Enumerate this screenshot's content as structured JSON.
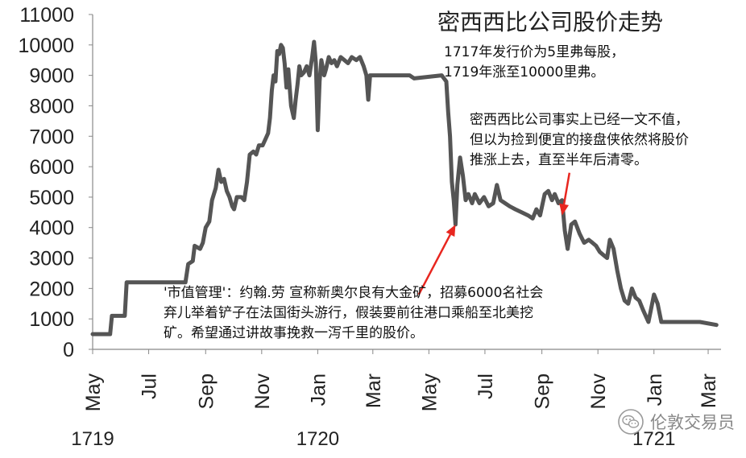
{
  "chart_data": {
    "type": "line",
    "title": "密西西比公司股价走势",
    "xlabel": "",
    "ylabel": "",
    "ylim": [
      0,
      11000
    ],
    "xlim": [
      "1719-05-01",
      "1721-03-15"
    ],
    "y_ticks": [
      "0",
      "1000",
      "2000",
      "3000",
      "4000",
      "5000",
      "6000",
      "7000",
      "8000",
      "9000",
      "10000",
      "11000"
    ],
    "x_ticks": [
      {
        "label": "May",
        "date": "1719-05-01"
      },
      {
        "label": "Jul",
        "date": "1719-07-01"
      },
      {
        "label": "Sep",
        "date": "1719-09-01"
      },
      {
        "label": "Nov",
        "date": "1719-11-01"
      },
      {
        "label": "Jan",
        "date": "1720-01-01"
      },
      {
        "label": "Mar",
        "date": "1720-03-01"
      },
      {
        "label": "May",
        "date": "1720-05-01"
      },
      {
        "label": "Jul",
        "date": "1720-07-01"
      },
      {
        "label": "Sep",
        "date": "1720-09-01"
      },
      {
        "label": "Nov",
        "date": "1720-11-01"
      },
      {
        "label": "Jan",
        "date": "1721-01-01"
      },
      {
        "label": "Mar",
        "date": "1721-03-01"
      }
    ],
    "year_labels": [
      {
        "label": "1719",
        "date": "1719-05-01"
      },
      {
        "label": "1720",
        "date": "1720-01-01"
      },
      {
        "label": "1721",
        "date": "1721-01-01"
      }
    ],
    "grid": false,
    "series_color": "#555555",
    "series": [
      {
        "name": "",
        "points": [
          [
            "1719-05-01",
            500
          ],
          [
            "1719-05-20",
            500
          ],
          [
            "1719-05-22",
            1100
          ],
          [
            "1719-06-05",
            1100
          ],
          [
            "1719-06-07",
            2200
          ],
          [
            "1719-08-10",
            2200
          ],
          [
            "1719-08-13",
            2800
          ],
          [
            "1719-08-18",
            2900
          ],
          [
            "1719-08-20",
            3400
          ],
          [
            "1719-08-26",
            3300
          ],
          [
            "1719-08-29",
            3500
          ],
          [
            "1719-09-01",
            4000
          ],
          [
            "1719-09-05",
            4200
          ],
          [
            "1719-09-08",
            4900
          ],
          [
            "1719-09-12",
            5300
          ],
          [
            "1719-09-15",
            5900
          ],
          [
            "1719-09-18",
            5500
          ],
          [
            "1719-09-21",
            5600
          ],
          [
            "1719-09-24",
            5200
          ],
          [
            "1719-09-27",
            5000
          ],
          [
            "1719-09-30",
            4700
          ],
          [
            "1719-10-02",
            4600
          ],
          [
            "1719-10-05",
            5000
          ],
          [
            "1719-10-10",
            5000
          ],
          [
            "1719-10-13",
            4900
          ],
          [
            "1719-10-16",
            5500
          ],
          [
            "1719-10-19",
            6400
          ],
          [
            "1719-10-23",
            6500
          ],
          [
            "1719-10-26",
            6400
          ],
          [
            "1719-10-29",
            6700
          ],
          [
            "1719-11-02",
            6700
          ],
          [
            "1719-11-05",
            6900
          ],
          [
            "1719-11-08",
            7100
          ],
          [
            "1719-11-10",
            7600
          ],
          [
            "1719-11-12",
            8500
          ],
          [
            "1719-11-14",
            9000
          ],
          [
            "1719-11-16",
            8800
          ],
          [
            "1719-11-18",
            9800
          ],
          [
            "1719-11-20",
            9700
          ],
          [
            "1719-11-22",
            10000
          ],
          [
            "1719-11-24",
            9900
          ],
          [
            "1719-11-26",
            9400
          ],
          [
            "1719-11-28",
            8600
          ],
          [
            "1719-11-30",
            9200
          ],
          [
            "1719-12-03",
            8000
          ],
          [
            "1719-12-06",
            7600
          ],
          [
            "1719-12-08",
            8200
          ],
          [
            "1719-12-10",
            8700
          ],
          [
            "1719-12-12",
            9300
          ],
          [
            "1719-12-14",
            9000
          ],
          [
            "1719-12-17",
            9100
          ],
          [
            "1719-12-20",
            9300
          ],
          [
            "1719-12-23",
            9000
          ],
          [
            "1719-12-26",
            9600
          ],
          [
            "1719-12-28",
            10100
          ],
          [
            "1719-12-30",
            9400
          ],
          [
            "1720-01-01",
            7200
          ],
          [
            "1720-01-03",
            8800
          ],
          [
            "1720-01-05",
            9500
          ],
          [
            "1720-01-08",
            9000
          ],
          [
            "1720-01-10",
            9200
          ],
          [
            "1720-01-13",
            9600
          ],
          [
            "1720-01-16",
            9400
          ],
          [
            "1720-01-19",
            9500
          ],
          [
            "1720-01-22",
            9300
          ],
          [
            "1720-01-26",
            9600
          ],
          [
            "1720-01-30",
            9500
          ],
          [
            "1720-02-03",
            9400
          ],
          [
            "1720-02-07",
            9600
          ],
          [
            "1720-02-12",
            9500
          ],
          [
            "1720-02-16",
            9600
          ],
          [
            "1720-02-20",
            9300
          ],
          [
            "1720-02-23",
            9000
          ],
          [
            "1720-02-25",
            8200
          ],
          [
            "1720-02-27",
            9000
          ],
          [
            "1720-03-10",
            9000
          ],
          [
            "1720-04-10",
            9000
          ],
          [
            "1720-04-15",
            8900
          ],
          [
            "1720-05-15",
            9000
          ],
          [
            "1720-05-20",
            8800
          ],
          [
            "1720-05-22",
            7800
          ],
          [
            "1720-05-24",
            7000
          ],
          [
            "1720-05-26",
            5500
          ],
          [
            "1720-05-28",
            4900
          ],
          [
            "1720-05-30",
            4100
          ],
          [
            "1720-06-01",
            5400
          ],
          [
            "1720-06-04",
            6300
          ],
          [
            "1720-06-07",
            5700
          ],
          [
            "1720-06-10",
            4900
          ],
          [
            "1720-06-13",
            5100
          ],
          [
            "1720-06-17",
            4800
          ],
          [
            "1720-06-20",
            5100
          ],
          [
            "1720-06-25",
            4800
          ],
          [
            "1720-06-30",
            5000
          ],
          [
            "1720-07-05",
            4700
          ],
          [
            "1720-07-10",
            4800
          ],
          [
            "1720-07-14",
            5400
          ],
          [
            "1720-07-18",
            4900
          ],
          [
            "1720-07-23",
            4800
          ],
          [
            "1720-07-28",
            4700
          ],
          [
            "1720-08-03",
            4600
          ],
          [
            "1720-08-10",
            4500
          ],
          [
            "1720-08-17",
            4400
          ],
          [
            "1720-08-22",
            4300
          ],
          [
            "1720-08-26",
            4600
          ],
          [
            "1720-08-30",
            4400
          ],
          [
            "1720-09-04",
            5100
          ],
          [
            "1720-09-08",
            5200
          ],
          [
            "1720-09-12",
            4900
          ],
          [
            "1720-09-15",
            5100
          ],
          [
            "1720-09-19",
            4800
          ],
          [
            "1720-09-23",
            4900
          ],
          [
            "1720-09-26",
            3900
          ],
          [
            "1720-09-29",
            3300
          ],
          [
            "1720-10-03",
            4100
          ],
          [
            "1720-10-07",
            4200
          ],
          [
            "1720-10-12",
            3800
          ],
          [
            "1720-10-17",
            3500
          ],
          [
            "1720-10-22",
            3600
          ],
          [
            "1720-10-26",
            3500
          ],
          [
            "1720-10-30",
            3400
          ],
          [
            "1720-11-03",
            3200
          ],
          [
            "1720-11-07",
            3100
          ],
          [
            "1720-11-11",
            3000
          ],
          [
            "1720-11-14",
            3600
          ],
          [
            "1720-11-18",
            3300
          ],
          [
            "1720-11-22",
            2600
          ],
          [
            "1720-11-26",
            2000
          ],
          [
            "1720-11-30",
            1600
          ],
          [
            "1720-12-04",
            1500
          ],
          [
            "1720-12-08",
            2000
          ],
          [
            "1720-12-12",
            1700
          ],
          [
            "1720-12-16",
            1600
          ],
          [
            "1720-12-20",
            1300
          ],
          [
            "1720-12-26",
            900
          ],
          [
            "1721-01-01",
            1800
          ],
          [
            "1721-01-05",
            1500
          ],
          [
            "1721-01-09",
            900
          ],
          [
            "1721-01-15",
            900
          ],
          [
            "1721-02-20",
            900
          ],
          [
            "1721-03-10",
            800
          ]
        ]
      }
    ],
    "annotations": [
      {
        "text_lines": [
          "1717年发行价为5里弗每股，",
          "1719年涨至10000里弗。"
        ]
      },
      {
        "text_lines": [
          "密西西比公司事实上已经一文不值，",
          "但以为捡到便宜的接盘侠依然将股价",
          "推涨上去，直至半年后清零。"
        ],
        "arrow": {
          "from": [
            "1720-10-01",
            5800
          ],
          "to": [
            "1720-09-23",
            4400
          ],
          "color": "#e8261f"
        }
      },
      {
        "text_lines": [
          "'市值管理'：约翰.劳 宣称新奥尔良有大金矿，招募6000名社会",
          "弃儿举着铲子在法国街头游行，假装要前往港口乘船至北美挖",
          "矿。希望通过讲故事挽救一泻千里的股价。"
        ],
        "arrow": {
          "from": [
            "1720-04-20",
            1800
          ],
          "to": [
            "1720-05-30",
            4100
          ],
          "color": "#e8261f"
        }
      }
    ]
  },
  "watermark": {
    "icon": "wechat-logo-icon",
    "text": "伦敦交易员"
  }
}
